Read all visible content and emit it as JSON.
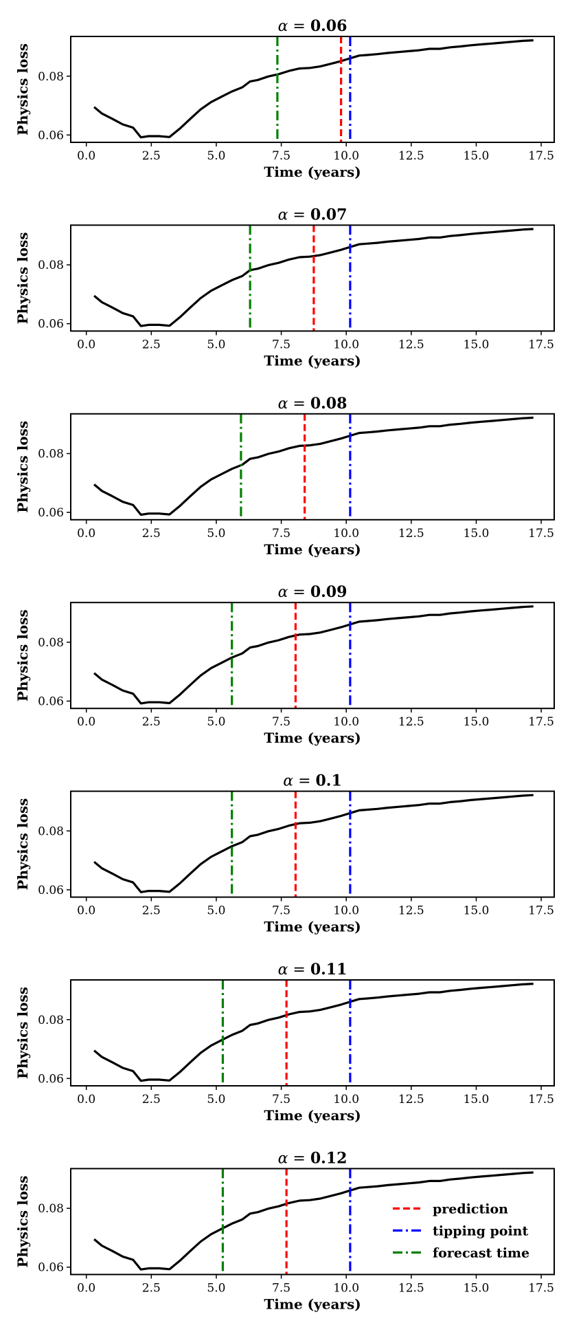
{
  "chart_data": [
    {
      "type": "line",
      "alpha_symbol": "α",
      "alpha_value": "0.06",
      "xlabel": "Time (years)",
      "ylabel": "Physics loss",
      "xlim": [
        -0.6,
        18.0
      ],
      "ylim": [
        0.0575,
        0.0935
      ],
      "x_ticks": [
        0.0,
        2.5,
        5.0,
        7.5,
        10.0,
        12.5,
        15.0,
        17.5
      ],
      "x_tick_labels": [
        "0.0",
        "2.5",
        "5.0",
        "7.5",
        "10.0",
        "12.5",
        "15.0",
        "17.5"
      ],
      "y_ticks": [
        0.06,
        0.08
      ],
      "y_tick_labels": [
        "0.06",
        "0.08"
      ],
      "grid": false,
      "prediction": 9.8,
      "tipping_point": 10.15,
      "forecast_time": 7.35
    },
    {
      "type": "line",
      "alpha_symbol": "α",
      "alpha_value": "0.07",
      "xlabel": "Time (years)",
      "ylabel": "Physics loss",
      "xlim": [
        -0.6,
        18.0
      ],
      "ylim": [
        0.0575,
        0.0935
      ],
      "x_ticks": [
        0.0,
        2.5,
        5.0,
        7.5,
        10.0,
        12.5,
        15.0,
        17.5
      ],
      "x_tick_labels": [
        "0.0",
        "2.5",
        "5.0",
        "7.5",
        "10.0",
        "12.5",
        "15.0",
        "17.5"
      ],
      "y_ticks": [
        0.06,
        0.08
      ],
      "y_tick_labels": [
        "0.06",
        "0.08"
      ],
      "grid": false,
      "prediction": 8.75,
      "tipping_point": 10.15,
      "forecast_time": 6.3
    },
    {
      "type": "line",
      "alpha_symbol": "α",
      "alpha_value": "0.08",
      "xlabel": "Time (years)",
      "ylabel": "Physics loss",
      "xlim": [
        -0.6,
        18.0
      ],
      "ylim": [
        0.0575,
        0.0935
      ],
      "x_ticks": [
        0.0,
        2.5,
        5.0,
        7.5,
        10.0,
        12.5,
        15.0,
        17.5
      ],
      "x_tick_labels": [
        "0.0",
        "2.5",
        "5.0",
        "7.5",
        "10.0",
        "12.5",
        "15.0",
        "17.5"
      ],
      "y_ticks": [
        0.06,
        0.08
      ],
      "y_tick_labels": [
        "0.06",
        "0.08"
      ],
      "grid": false,
      "prediction": 8.4,
      "tipping_point": 10.15,
      "forecast_time": 5.95
    },
    {
      "type": "line",
      "alpha_symbol": "α",
      "alpha_value": "0.09",
      "xlabel": "Time (years)",
      "ylabel": "Physics loss",
      "xlim": [
        -0.6,
        18.0
      ],
      "ylim": [
        0.0575,
        0.0935
      ],
      "x_ticks": [
        0.0,
        2.5,
        5.0,
        7.5,
        10.0,
        12.5,
        15.0,
        17.5
      ],
      "x_tick_labels": [
        "0.0",
        "2.5",
        "5.0",
        "7.5",
        "10.0",
        "12.5",
        "15.0",
        "17.5"
      ],
      "y_ticks": [
        0.06,
        0.08
      ],
      "y_tick_labels": [
        "0.06",
        "0.08"
      ],
      "grid": false,
      "prediction": 8.05,
      "tipping_point": 10.15,
      "forecast_time": 5.6
    },
    {
      "type": "line",
      "alpha_symbol": "α",
      "alpha_value": "0.1",
      "xlabel": "Time (years)",
      "ylabel": "Physics loss",
      "xlim": [
        -0.6,
        18.0
      ],
      "ylim": [
        0.0575,
        0.0935
      ],
      "x_ticks": [
        0.0,
        2.5,
        5.0,
        7.5,
        10.0,
        12.5,
        15.0,
        17.5
      ],
      "x_tick_labels": [
        "0.0",
        "2.5",
        "5.0",
        "7.5",
        "10.0",
        "12.5",
        "15.0",
        "17.5"
      ],
      "y_ticks": [
        0.06,
        0.08
      ],
      "y_tick_labels": [
        "0.06",
        "0.08"
      ],
      "grid": false,
      "prediction": 8.05,
      "tipping_point": 10.15,
      "forecast_time": 5.6
    },
    {
      "type": "line",
      "alpha_symbol": "α",
      "alpha_value": "0.11",
      "xlabel": "Time (years)",
      "ylabel": "Physics loss",
      "xlim": [
        -0.6,
        18.0
      ],
      "ylim": [
        0.0575,
        0.0935
      ],
      "x_ticks": [
        0.0,
        2.5,
        5.0,
        7.5,
        10.0,
        12.5,
        15.0,
        17.5
      ],
      "x_tick_labels": [
        "0.0",
        "2.5",
        "5.0",
        "7.5",
        "10.0",
        "12.5",
        "15.0",
        "17.5"
      ],
      "y_ticks": [
        0.06,
        0.08
      ],
      "y_tick_labels": [
        "0.06",
        "0.08"
      ],
      "grid": false,
      "prediction": 7.7,
      "tipping_point": 10.15,
      "forecast_time": 5.25
    },
    {
      "type": "line",
      "alpha_symbol": "α",
      "alpha_value": "0.12",
      "xlabel": "Time (years)",
      "ylabel": "Physics loss",
      "xlim": [
        -0.6,
        18.0
      ],
      "ylim": [
        0.0575,
        0.0935
      ],
      "x_ticks": [
        0.0,
        2.5,
        5.0,
        7.5,
        10.0,
        12.5,
        15.0,
        17.5
      ],
      "x_tick_labels": [
        "0.0",
        "2.5",
        "5.0",
        "7.5",
        "10.0",
        "12.5",
        "15.0",
        "17.5"
      ],
      "y_ticks": [
        0.06,
        0.08
      ],
      "y_tick_labels": [
        "0.06",
        "0.08"
      ],
      "grid": false,
      "prediction": 7.7,
      "tipping_point": 10.15,
      "forecast_time": 5.25,
      "legend": {
        "placement": "lower-right",
        "entries": [
          {
            "label": "prediction",
            "color": "#ff0000",
            "style": "dashed"
          },
          {
            "label": "tipping point",
            "color": "#0000ff",
            "style": "dashdot"
          },
          {
            "label": "forecast time",
            "color": "#008000",
            "style": "dashdot"
          }
        ]
      }
    }
  ],
  "physics_loss_curve": {
    "x": [
      0.3,
      0.6,
      1.0,
      1.4,
      1.8,
      2.1,
      2.4,
      2.8,
      3.2,
      3.6,
      4.0,
      4.4,
      4.8,
      5.2,
      5.6,
      6.0,
      6.3,
      6.6,
      7.0,
      7.4,
      7.8,
      8.2,
      8.6,
      9.0,
      9.4,
      9.8,
      10.2,
      10.5,
      10.8,
      11.2,
      11.6,
      12.0,
      12.4,
      12.8,
      13.2,
      13.6,
      14.0,
      14.4,
      14.8,
      15.2,
      15.6,
      16.0,
      16.4,
      16.8,
      17.2
    ],
    "y": [
      0.0695,
      0.0673,
      0.0655,
      0.0636,
      0.0625,
      0.0592,
      0.0596,
      0.0596,
      0.0593,
      0.0622,
      0.0655,
      0.0687,
      0.0712,
      0.073,
      0.0748,
      0.0762,
      0.0782,
      0.0787,
      0.0799,
      0.0807,
      0.0818,
      0.0826,
      0.0828,
      0.0833,
      0.0842,
      0.0851,
      0.0862,
      0.087,
      0.0872,
      0.0875,
      0.0879,
      0.0882,
      0.0885,
      0.0888,
      0.0893,
      0.0893,
      0.0898,
      0.0901,
      0.0905,
      0.0908,
      0.0911,
      0.0914,
      0.0917,
      0.092,
      0.0922
    ],
    "color": "#000000"
  },
  "colors": {
    "prediction": "#ff0000",
    "tipping_point": "#0000ff",
    "forecast_time": "#008000",
    "curve": "#000000"
  }
}
